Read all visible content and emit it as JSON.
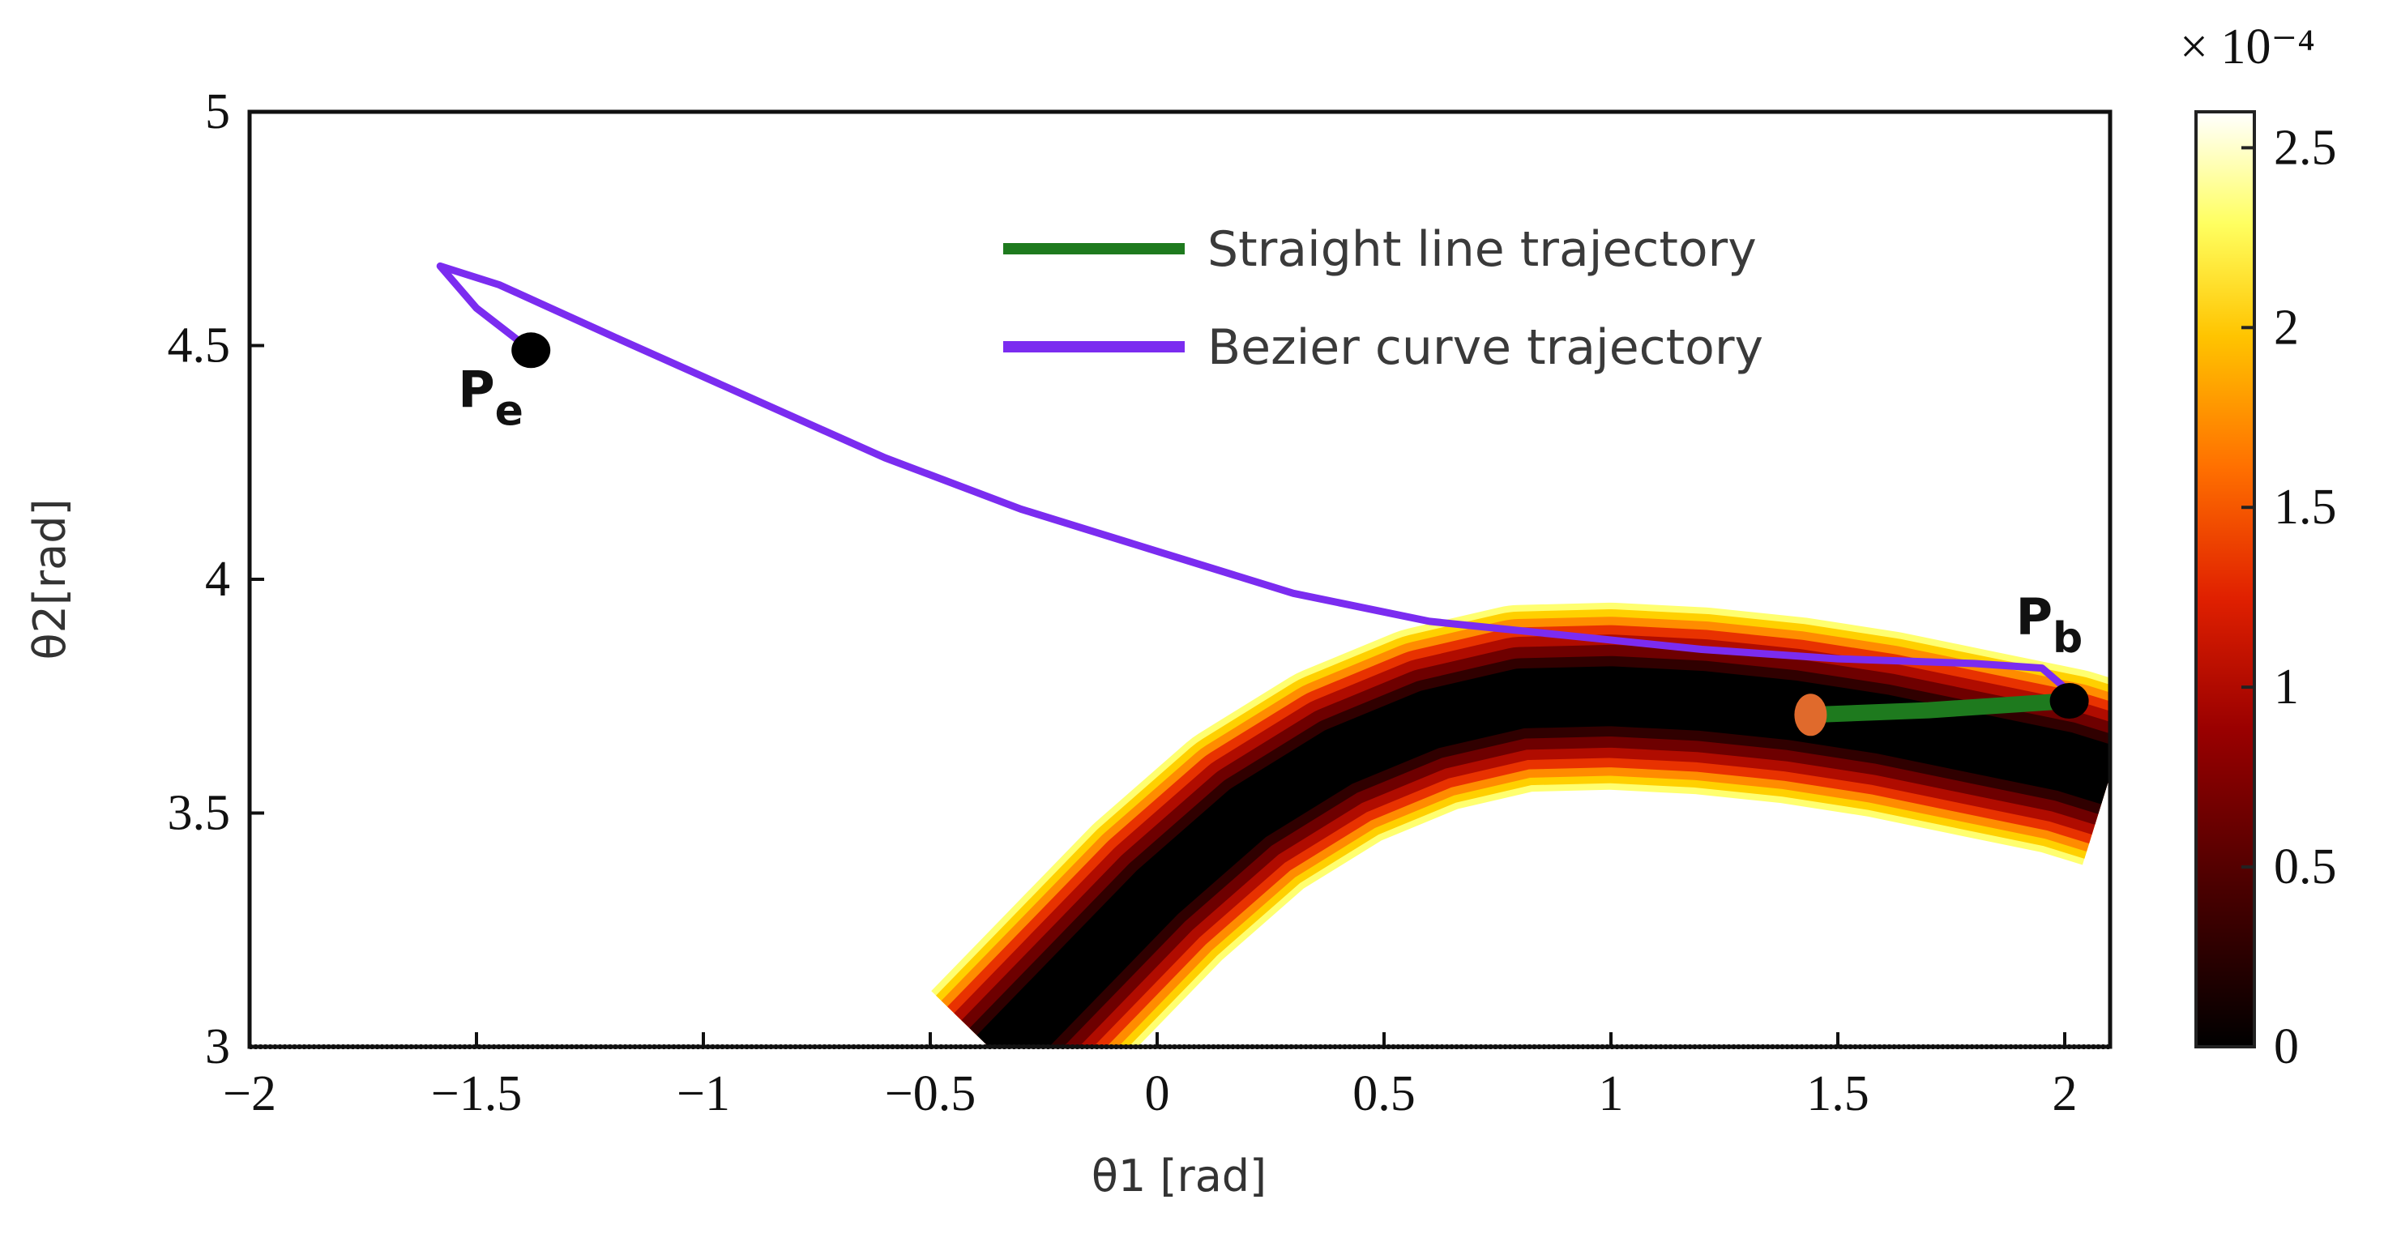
{
  "chart_data": {
    "type": "line",
    "xlabel": "θ1 [rad]",
    "ylabel": "θ2[rad]",
    "xlim": [
      -2,
      2.1
    ],
    "ylim": [
      3,
      5
    ],
    "x_ticks": [
      "−2",
      "−1.5",
      "−1",
      "−0.5",
      "0",
      "0.5",
      "1",
      "1.5",
      "2"
    ],
    "y_ticks": [
      "3",
      "3.5",
      "4",
      "4.5",
      "5"
    ],
    "grid": false,
    "legend_position": "top-right",
    "series": [
      {
        "name": "Straight line trajectory",
        "color": "#1e7a1e",
        "x": [
          1.44,
          1.7,
          2.01
        ],
        "y": [
          3.71,
          3.72,
          3.74
        ]
      },
      {
        "name": "Bezier curve trajectory",
        "color": "#7b2cf0",
        "x": [
          -1.38,
          -1.5,
          -1.58,
          -1.45,
          -1.2,
          -0.9,
          -0.6,
          -0.3,
          0.0,
          0.3,
          0.6,
          0.9,
          1.2,
          1.5,
          1.8,
          1.95,
          2.01
        ],
        "y": [
          4.49,
          4.58,
          4.67,
          4.63,
          4.52,
          4.39,
          4.26,
          4.15,
          4.06,
          3.97,
          3.91,
          3.88,
          3.85,
          3.83,
          3.82,
          3.81,
          3.76
        ]
      }
    ],
    "points": [
      {
        "label": "P",
        "subscript": "e",
        "x": -1.38,
        "y": 4.49,
        "color": "#000000"
      },
      {
        "label": "P",
        "subscript": "b",
        "x": 2.01,
        "y": 3.74,
        "color": "#000000"
      },
      {
        "label": "",
        "subscript": "",
        "x": 1.44,
        "y": 3.71,
        "color": "#e06a2c"
      }
    ],
    "heatmap_ridge": {
      "description": "cost field valley along ridge curve",
      "x": [
        -0.35,
        -0.2,
        0.0,
        0.2,
        0.4,
        0.6,
        0.8,
        1.0,
        1.2,
        1.4,
        1.6,
        1.8,
        2.0,
        2.1
      ],
      "y": [
        2.98,
        3.13,
        3.33,
        3.5,
        3.62,
        3.7,
        3.745,
        3.75,
        3.74,
        3.72,
        3.69,
        3.65,
        3.61,
        3.58
      ],
      "half_width": 0.2
    },
    "colorbar": {
      "exponent": "× 10⁻⁴",
      "ticks": [
        "0",
        "0.5",
        "1",
        "1.5",
        "2",
        "2.5"
      ],
      "values": [
        0,
        0.5,
        1,
        1.5,
        2,
        2.5
      ],
      "range": [
        0,
        2.6
      ],
      "colormap": [
        "#000000",
        "#4a0000",
        "#9a0000",
        "#e02000",
        "#ff7000",
        "#ffc400",
        "#ffff60",
        "#ffffff"
      ]
    }
  }
}
